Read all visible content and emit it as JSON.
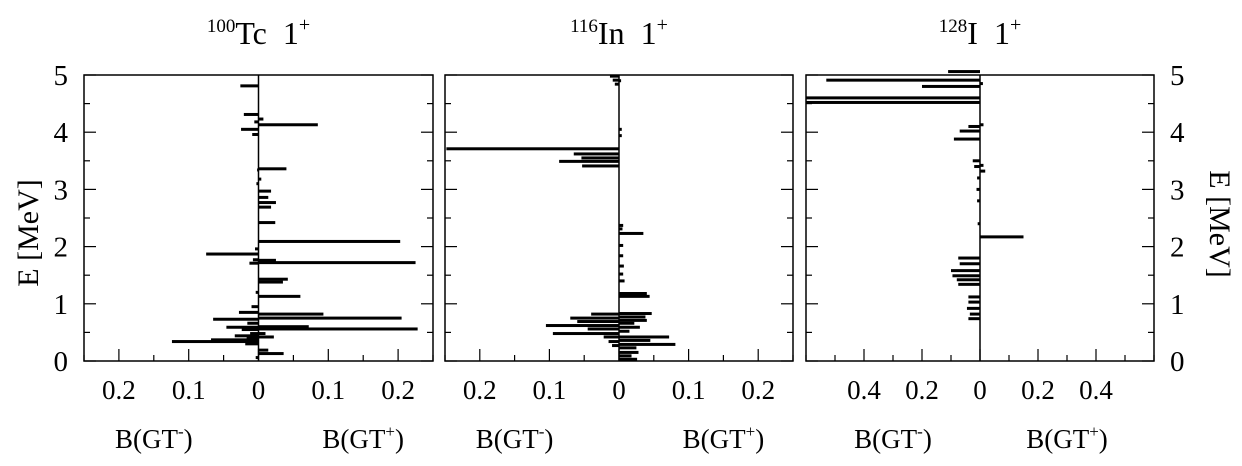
{
  "figure": {
    "left_axis_label": "E [MeV]",
    "right_axis_label": "E [MeV]",
    "y_ticks": [
      "0",
      "1",
      "2",
      "3",
      "4",
      "5"
    ],
    "bar_color": "#000000"
  },
  "chart_data": [
    {
      "type": "bar",
      "orientation": "horizontal-mirrored",
      "title": {
        "mass": "100",
        "element": "Tc",
        "spin": "1",
        "parity": "+"
      },
      "xlabel_left": {
        "base": "B(GT",
        "sup": "-",
        "close": ")"
      },
      "xlabel_right": {
        "base": "B(GT",
        "sup": "+",
        "close": ")"
      },
      "x_tick_labels": [
        "0.2",
        "0.1",
        "0",
        "0.1",
        "0.2"
      ],
      "x_tick_values": [
        -0.2,
        -0.1,
        0,
        0.1,
        0.2
      ],
      "xlim": [
        -0.25,
        0.25
      ],
      "ylim": [
        0,
        5
      ],
      "grid": false,
      "gt_minus": [
        {
          "E": 4.81,
          "B": 0.026
        },
        {
          "E": 4.31,
          "B": 0.021
        },
        {
          "E": 4.18,
          "B": 0.006
        },
        {
          "E": 4.05,
          "B": 0.025
        },
        {
          "E": 3.96,
          "B": 0.009
        },
        {
          "E": 3.34,
          "B": 0.002
        },
        {
          "E": 3.1,
          "B": 0.003
        },
        {
          "E": 1.96,
          "B": 0.005
        },
        {
          "E": 1.87,
          "B": 0.075
        },
        {
          "E": 1.77,
          "B": 0.008
        },
        {
          "E": 1.71,
          "B": 0.013
        },
        {
          "E": 1.2,
          "B": 0.004
        },
        {
          "E": 0.95,
          "B": 0.01
        },
        {
          "E": 0.85,
          "B": 0.028
        },
        {
          "E": 0.73,
          "B": 0.065
        },
        {
          "E": 0.66,
          "B": 0.016
        },
        {
          "E": 0.59,
          "B": 0.046
        },
        {
          "E": 0.55,
          "B": 0.024
        },
        {
          "E": 0.48,
          "B": 0.012
        },
        {
          "E": 0.44,
          "B": 0.034
        },
        {
          "E": 0.41,
          "B": 0.017
        },
        {
          "E": 0.37,
          "B": 0.068
        },
        {
          "E": 0.34,
          "B": 0.124
        },
        {
          "E": 0.3,
          "B": 0.019
        },
        {
          "E": 0.06,
          "B": 0.004
        }
      ],
      "gt_plus": [
        {
          "E": 4.23,
          "B": 0.007
        },
        {
          "E": 4.13,
          "B": 0.085
        },
        {
          "E": 3.36,
          "B": 0.04
        },
        {
          "E": 3.18,
          "B": 0.004
        },
        {
          "E": 2.97,
          "B": 0.018
        },
        {
          "E": 2.86,
          "B": 0.014
        },
        {
          "E": 2.77,
          "B": 0.025
        },
        {
          "E": 2.69,
          "B": 0.018
        },
        {
          "E": 2.42,
          "B": 0.024
        },
        {
          "E": 2.09,
          "B": 0.203
        },
        {
          "E": 1.76,
          "B": 0.025
        },
        {
          "E": 1.72,
          "B": 0.225
        },
        {
          "E": 1.43,
          "B": 0.042
        },
        {
          "E": 1.38,
          "B": 0.035
        },
        {
          "E": 1.13,
          "B": 0.06
        },
        {
          "E": 0.82,
          "B": 0.093
        },
        {
          "E": 0.75,
          "B": 0.205
        },
        {
          "E": 0.6,
          "B": 0.072
        },
        {
          "E": 0.56,
          "B": 0.228
        },
        {
          "E": 0.48,
          "B": 0.01
        },
        {
          "E": 0.42,
          "B": 0.022
        },
        {
          "E": 0.19,
          "B": 0.014
        },
        {
          "E": 0.13,
          "B": 0.036
        }
      ]
    },
    {
      "type": "bar",
      "orientation": "horizontal-mirrored",
      "title": {
        "mass": "116",
        "element": "In",
        "spin": "1",
        "parity": "+"
      },
      "xlabel_left": {
        "base": "B(GT",
        "sup": "-",
        "close": ")"
      },
      "xlabel_right": {
        "base": "B(GT",
        "sup": "+",
        "close": ")"
      },
      "x_tick_labels": [
        "0.2",
        "0.1",
        "0",
        "0.1",
        "0.2"
      ],
      "x_tick_values": [
        -0.2,
        -0.1,
        0,
        0.1,
        0.2
      ],
      "xlim": [
        -0.25,
        0.25
      ],
      "ylim": [
        0,
        5
      ],
      "grid": false,
      "gt_minus": [
        {
          "E": 4.98,
          "B": 0.013
        },
        {
          "E": 4.91,
          "B": 0.009
        },
        {
          "E": 4.84,
          "B": 0.006
        },
        {
          "E": 3.71,
          "B": 0.248
        },
        {
          "E": 3.62,
          "B": 0.065
        },
        {
          "E": 3.55,
          "B": 0.054
        },
        {
          "E": 3.49,
          "B": 0.086
        },
        {
          "E": 3.41,
          "B": 0.053
        },
        {
          "E": 0.82,
          "B": 0.04
        },
        {
          "E": 0.75,
          "B": 0.07
        },
        {
          "E": 0.69,
          "B": 0.06
        },
        {
          "E": 0.62,
          "B": 0.105
        },
        {
          "E": 0.56,
          "B": 0.045
        },
        {
          "E": 0.48,
          "B": 0.095
        },
        {
          "E": 0.42,
          "B": 0.022
        },
        {
          "E": 0.34,
          "B": 0.015
        },
        {
          "E": 0.27,
          "B": 0.01
        }
      ],
      "gt_plus": [
        {
          "E": 4.9,
          "B": 0.003
        },
        {
          "E": 4.05,
          "B": 0.004
        },
        {
          "E": 3.94,
          "B": 0.004
        },
        {
          "E": 2.37,
          "B": 0.006
        },
        {
          "E": 2.31,
          "B": 0.005
        },
        {
          "E": 2.23,
          "B": 0.035
        },
        {
          "E": 2.02,
          "B": 0.006
        },
        {
          "E": 1.84,
          "B": 0.006
        },
        {
          "E": 1.66,
          "B": 0.007
        },
        {
          "E": 1.52,
          "B": 0.006
        },
        {
          "E": 1.4,
          "B": 0.008
        },
        {
          "E": 1.18,
          "B": 0.04
        },
        {
          "E": 1.13,
          "B": 0.044
        },
        {
          "E": 0.83,
          "B": 0.047
        },
        {
          "E": 0.77,
          "B": 0.038
        },
        {
          "E": 0.71,
          "B": 0.04
        },
        {
          "E": 0.66,
          "B": 0.022
        },
        {
          "E": 0.59,
          "B": 0.03
        },
        {
          "E": 0.52,
          "B": 0.015
        },
        {
          "E": 0.42,
          "B": 0.072
        },
        {
          "E": 0.36,
          "B": 0.045
        },
        {
          "E": 0.29,
          "B": 0.081
        },
        {
          "E": 0.23,
          "B": 0.025
        },
        {
          "E": 0.15,
          "B": 0.028
        },
        {
          "E": 0.09,
          "B": 0.018
        },
        {
          "E": 0.03,
          "B": 0.026
        }
      ]
    },
    {
      "type": "bar",
      "orientation": "horizontal-mirrored",
      "title": {
        "mass": "128",
        "element": "I",
        "spin": "1",
        "parity": "+"
      },
      "xlabel_left": {
        "base": "B(GT",
        "sup": "-",
        "close": ")"
      },
      "xlabel_right": {
        "base": "B(GT",
        "sup": "+",
        "close": ")"
      },
      "x_tick_labels": [
        "0.4",
        "0.2",
        "0",
        "0.2",
        "0.4"
      ],
      "x_tick_values": [
        -0.4,
        -0.2,
        0,
        0.2,
        0.4
      ],
      "xlim": [
        -0.6,
        0.6
      ],
      "ylim": [
        0,
        5
      ],
      "grid": false,
      "gt_minus": [
        {
          "E": 5.06,
          "B": 0.11
        },
        {
          "E": 4.91,
          "B": 0.53
        },
        {
          "E": 4.8,
          "B": 0.2
        },
        {
          "E": 4.6,
          "B": 0.6
        },
        {
          "E": 4.52,
          "B": 0.6
        },
        {
          "E": 4.1,
          "B": 0.04
        },
        {
          "E": 4.02,
          "B": 0.07
        },
        {
          "E": 3.88,
          "B": 0.09
        },
        {
          "E": 3.5,
          "B": 0.025
        },
        {
          "E": 3.4,
          "B": 0.02
        },
        {
          "E": 3.2,
          "B": 0.01
        },
        {
          "E": 3.0,
          "B": 0.012
        },
        {
          "E": 2.8,
          "B": 0.01
        },
        {
          "E": 2.4,
          "B": 0.008
        },
        {
          "E": 1.8,
          "B": 0.075
        },
        {
          "E": 1.7,
          "B": 0.07
        },
        {
          "E": 1.58,
          "B": 0.1
        },
        {
          "E": 1.49,
          "B": 0.095
        },
        {
          "E": 1.42,
          "B": 0.08
        },
        {
          "E": 1.34,
          "B": 0.075
        },
        {
          "E": 1.12,
          "B": 0.04
        },
        {
          "E": 1.03,
          "B": 0.04
        },
        {
          "E": 0.92,
          "B": 0.045
        },
        {
          "E": 0.82,
          "B": 0.035
        },
        {
          "E": 0.74,
          "B": 0.04
        }
      ],
      "gt_plus": [
        {
          "E": 4.85,
          "B": 0.01
        },
        {
          "E": 4.13,
          "B": 0.012
        },
        {
          "E": 3.42,
          "B": 0.012
        },
        {
          "E": 3.32,
          "B": 0.018
        },
        {
          "E": 2.17,
          "B": 0.15
        }
      ]
    }
  ]
}
